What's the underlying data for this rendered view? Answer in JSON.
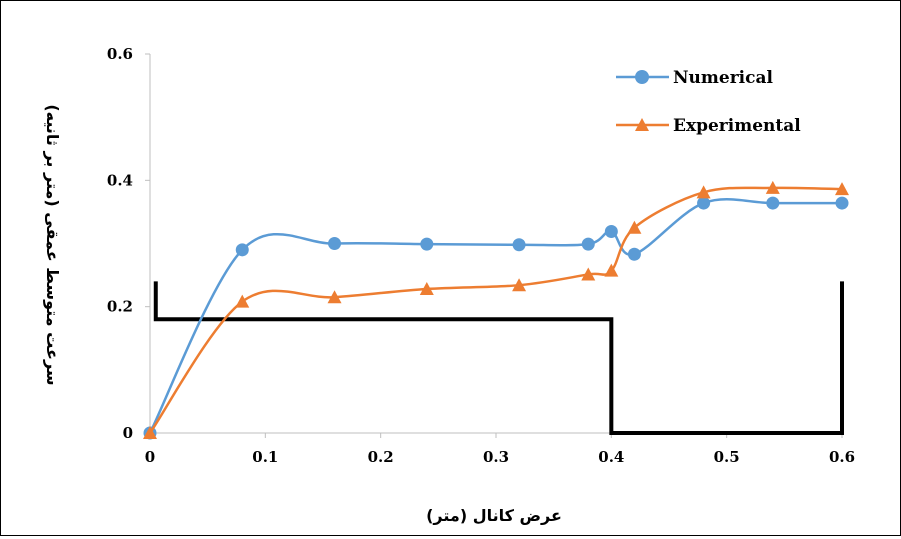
{
  "chart_data": {
    "type": "line",
    "xlabel": "عرض کانال (متر)",
    "ylabel": "سرعت متوسط عمقی (متر بر ثانیه)",
    "xlim": [
      0,
      0.6
    ],
    "ylim": [
      0,
      0.6
    ],
    "x_ticks": [
      "0",
      "0.1",
      "0.2",
      "0.3",
      "0.4",
      "0.5",
      "0.6"
    ],
    "y_ticks": [
      "0",
      "0.2",
      "0.4",
      "0.6"
    ],
    "legend_position": "top-right",
    "grid": false,
    "series": [
      {
        "name": "Numerical",
        "color": "#5B9BD5",
        "marker": "circle",
        "points": [
          [
            0,
            0
          ],
          [
            0.08,
            0.29
          ],
          [
            0.16,
            0.3
          ],
          [
            0.24,
            0.299
          ],
          [
            0.32,
            0.298
          ],
          [
            0.38,
            0.299
          ],
          [
            0.4,
            0.319
          ],
          [
            0.42,
            0.283
          ],
          [
            0.48,
            0.364
          ],
          [
            0.54,
            0.364
          ],
          [
            0.6,
            0.364
          ]
        ]
      },
      {
        "name": "Experimental",
        "color": "#ED7D31",
        "marker": "triangle",
        "points": [
          [
            0,
            0
          ],
          [
            0.08,
            0.208
          ],
          [
            0.16,
            0.215
          ],
          [
            0.24,
            0.228
          ],
          [
            0.32,
            0.234
          ],
          [
            0.38,
            0.251
          ],
          [
            0.4,
            0.257
          ],
          [
            0.42,
            0.325
          ],
          [
            0.48,
            0.381
          ],
          [
            0.54,
            0.388
          ],
          [
            0.6,
            0.386
          ]
        ]
      }
    ],
    "channel_profile": {
      "color": "#000000",
      "points": [
        [
          0.005,
          0.24
        ],
        [
          0.005,
          0.18
        ],
        [
          0.4,
          0.18
        ],
        [
          0.4,
          0
        ],
        [
          0.6,
          0
        ],
        [
          0.6,
          0.24
        ]
      ]
    }
  }
}
